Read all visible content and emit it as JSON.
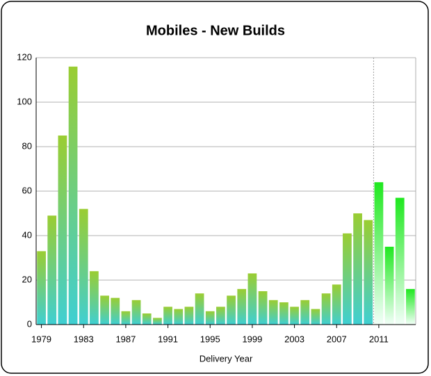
{
  "chart_data": {
    "type": "bar",
    "title": "Mobiles - New Builds",
    "x_label": "Delivery Year",
    "categories": [
      "1979",
      null,
      null,
      null,
      "1983",
      null,
      null,
      null,
      "1987",
      null,
      null,
      null,
      "1991",
      null,
      null,
      null,
      "1995",
      null,
      null,
      null,
      "1999",
      null,
      null,
      null,
      "2003",
      null,
      null,
      null,
      "2007",
      null,
      null,
      null,
      "2011",
      null,
      null,
      null
    ],
    "series": [
      {
        "color": [
          "#9acd32",
          "#3fcfd2"
        ],
        "values": [
          33,
          49,
          85,
          116,
          52,
          24,
          13,
          12,
          6,
          11,
          5,
          3,
          8,
          7,
          8,
          14,
          6,
          8,
          13,
          16,
          23,
          15,
          11,
          10,
          8,
          11,
          7,
          14,
          18,
          41,
          50,
          47,
          null,
          null,
          null,
          null
        ]
      },
      {
        "color": [
          "#1fe81f",
          "#f2fff8"
        ],
        "values": [
          null,
          null,
          null,
          null,
          null,
          null,
          null,
          null,
          null,
          null,
          null,
          null,
          null,
          null,
          null,
          null,
          null,
          null,
          null,
          null,
          null,
          null,
          null,
          null,
          null,
          null,
          null,
          null,
          null,
          null,
          null,
          null,
          64,
          35,
          57,
          16
        ]
      }
    ],
    "ylim": [
      0,
      120
    ],
    "yticks": [
      0,
      20,
      40,
      60,
      80,
      100,
      120
    ],
    "grid": true
  }
}
